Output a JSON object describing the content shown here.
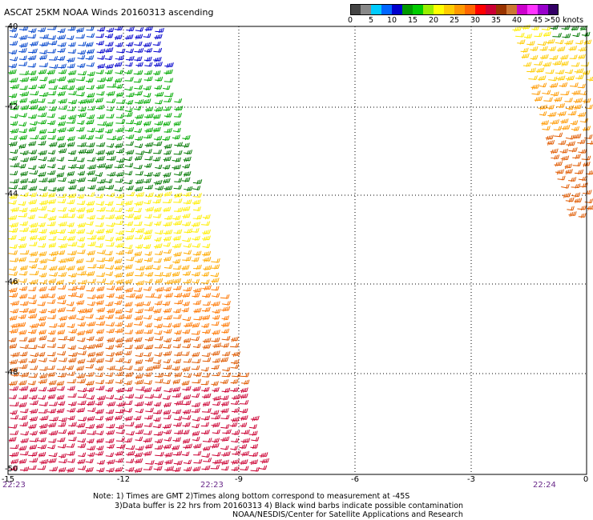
{
  "title": "ASCAT 25KM NOAA Winds 20160313 ascending",
  "colorbar": {
    "labels": [
      "0",
      "5",
      "10",
      "15",
      "20",
      "25",
      "30",
      "35",
      "40",
      "45",
      ">50 knots"
    ],
    "colors": [
      "#444444",
      "#888888",
      "#00ccff",
      "#0066ff",
      "#0000cc",
      "#009900",
      "#00cc00",
      "#99ee00",
      "#ffff00",
      "#ffcc00",
      "#ff9900",
      "#ff6600",
      "#ff0000",
      "#cc0033",
      "#993300",
      "#cc7733",
      "#cc00cc",
      "#ff33ff",
      "#9900cc",
      "#330066"
    ]
  },
  "axes": {
    "x_ticks": [
      "-15",
      "-12",
      "-9",
      "-6",
      "-3",
      "0"
    ],
    "y_ticks": [
      "-40",
      "-42",
      "-44",
      "-46",
      "-48",
      "-50"
    ]
  },
  "time_labels": [
    "22:23",
    "22:23",
    "22:24"
  ],
  "notes": {
    "line1": "Note: 1) Times are GMT 2)Times along bottom correspond to measurement at -45S",
    "line2": "3)Data buffer is 22 hrs from 20160313 4) Black wind barbs indicate possible contamination",
    "line3": "NOAA/NESDIS/Center for Satellite Applications and Research"
  }
}
